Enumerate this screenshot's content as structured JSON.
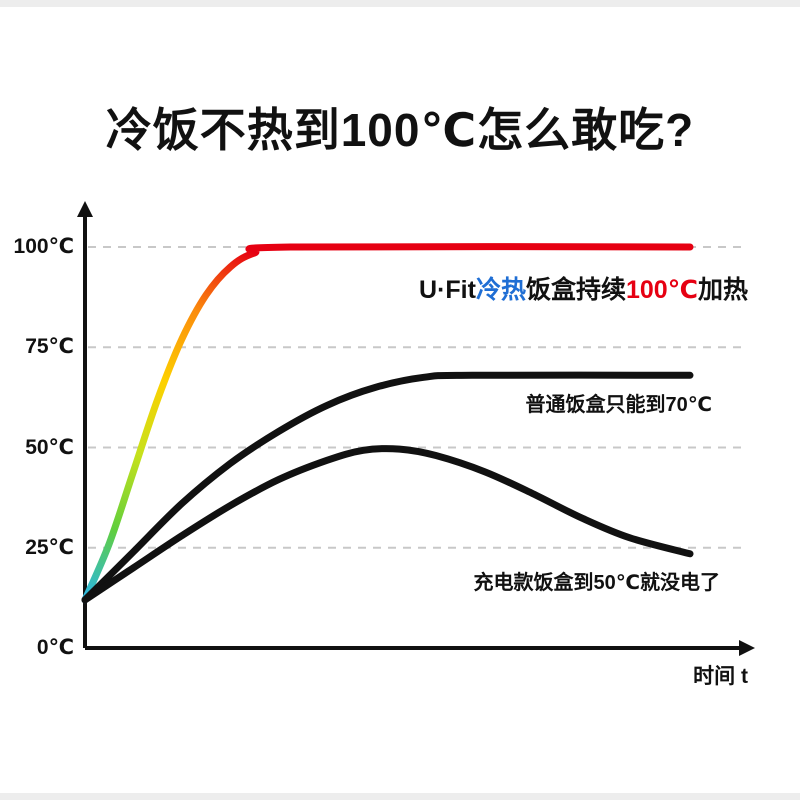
{
  "page": {
    "title": "冷饭不热到100℃怎么敢吃?",
    "background_color": "#ffffff",
    "edge_strip_color": "#ededed"
  },
  "chart_data": {
    "type": "line",
    "title": "冷饭不热到100℃怎么敢吃?",
    "xlabel": "时间 t",
    "ylabel": "",
    "ylim": [
      0,
      108
    ],
    "x_note": "time axis has no numeric ticks; values normalized 0-100",
    "grid": "horizontal dashed gridlines at each labeled temperature",
    "legend_position": "inline text annotations beside curves",
    "axis_color": "#111111",
    "gridline_color": "#c8c8c8",
    "yticks": [
      {
        "value": 0,
        "label": "0℃"
      },
      {
        "value": 25,
        "label": "25℃"
      },
      {
        "value": 50,
        "label": "50℃"
      },
      {
        "value": 75,
        "label": "75℃"
      },
      {
        "value": 100,
        "label": "100℃"
      }
    ],
    "series": [
      {
        "name": "U·Fit冷热饭盒 (持续100℃加热)",
        "color": "rainbow gradient cyan→green→yellow→orange→red",
        "gradient_stops": [
          "#29b6e8",
          "#62cf3c",
          "#c6e11c",
          "#fdd000",
          "#fb8c0c",
          "#e60012"
        ],
        "line_width": 7,
        "points": [
          [
            0,
            12
          ],
          [
            4,
            26
          ],
          [
            8,
            44
          ],
          [
            12,
            62
          ],
          [
            16,
            77
          ],
          [
            20,
            88
          ],
          [
            24,
            95
          ],
          [
            28,
            98.5
          ],
          [
            34,
            100
          ],
          [
            100,
            100
          ]
        ]
      },
      {
        "name": "普通饭盒 (只能到70℃)",
        "color": "#111111",
        "line_width": 7,
        "points": [
          [
            0,
            12
          ],
          [
            8,
            24
          ],
          [
            16,
            36
          ],
          [
            24,
            46
          ],
          [
            32,
            54
          ],
          [
            40,
            60.5
          ],
          [
            48,
            65
          ],
          [
            56,
            67.5
          ],
          [
            64,
            68
          ],
          [
            100,
            68
          ]
        ]
      },
      {
        "name": "充电款饭盒 (到50℃就没电了)",
        "color": "#111111",
        "line_width": 7,
        "points": [
          [
            0,
            12
          ],
          [
            8,
            20
          ],
          [
            16,
            28
          ],
          [
            24,
            35.5
          ],
          [
            32,
            42
          ],
          [
            40,
            46.8
          ],
          [
            46,
            49.3
          ],
          [
            52,
            49.6
          ],
          [
            58,
            48
          ],
          [
            66,
            44
          ],
          [
            74,
            38.5
          ],
          [
            82,
            32.5
          ],
          [
            90,
            27.5
          ],
          [
            100,
            23.5
          ]
        ]
      }
    ],
    "annotations": [
      {
        "name": "ufit-curve-label",
        "parts": [
          {
            "text": "U·Fit",
            "color": "#111111"
          },
          {
            "text": "冷热",
            "color": "#1f6ed4"
          },
          {
            "text": "饭盒持续",
            "color": "#111111"
          },
          {
            "text": "100℃",
            "color": "#e60012"
          },
          {
            "text": "加热",
            "color": "#111111"
          }
        ]
      },
      {
        "name": "ordinary-curve-label",
        "text": "普通饭盒只能到70℃",
        "color": "#111111"
      },
      {
        "name": "battery-curve-label",
        "text": "充电款饭盒到50℃就没电了",
        "color": "#111111"
      }
    ]
  }
}
